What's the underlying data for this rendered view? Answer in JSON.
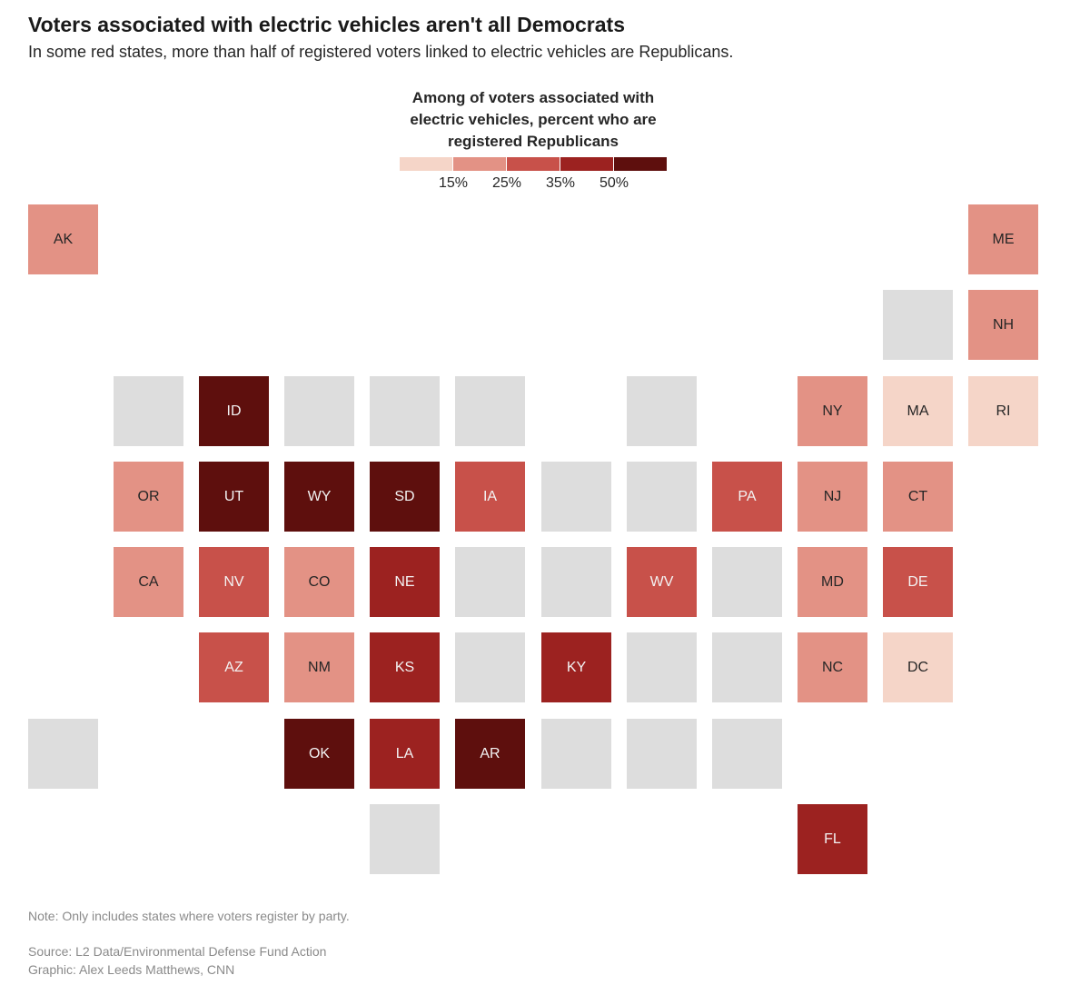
{
  "header": {
    "title": "Voters associated with electric vehicles aren't all Democrats",
    "subtitle": "In some red states, more than half of registered voters linked to electric vehicles are Republicans."
  },
  "legend": {
    "title_lines": [
      "Among of voters associated with",
      "electric vehicles, percent who are",
      "registered Republicans"
    ],
    "ticks": [
      "15%",
      "25%",
      "35%",
      "50%"
    ],
    "colors": [
      "#f5d5c8",
      "#e39285",
      "#c8514a",
      "#9c2220",
      "#5e0f0d"
    ]
  },
  "colors": {
    "no_data": "#dddddd"
  },
  "chart_data": {
    "type": "tile-map",
    "title": "Voters associated with electric vehicles aren't all Democrats",
    "measure": "Among of voters associated with electric vehicles, percent who are registered Republicans",
    "bins": [
      "<15%",
      "15%-25%",
      "25%-35%",
      "35%-50%",
      ">50%"
    ],
    "states": [
      {
        "abbr": "AK",
        "bin": 1
      },
      {
        "abbr": "ME",
        "bin": 1
      },
      {
        "abbr": "",
        "bin": null
      },
      {
        "abbr": "NH",
        "bin": 1
      },
      {
        "abbr": "",
        "bin": null
      },
      {
        "abbr": "ID",
        "bin": 4
      },
      {
        "abbr": "",
        "bin": null
      },
      {
        "abbr": "",
        "bin": null
      },
      {
        "abbr": "",
        "bin": null
      },
      {
        "abbr": "",
        "bin": null
      },
      {
        "abbr": "NY",
        "bin": 1
      },
      {
        "abbr": "MA",
        "bin": 0
      },
      {
        "abbr": "RI",
        "bin": 0
      },
      {
        "abbr": "OR",
        "bin": 1
      },
      {
        "abbr": "UT",
        "bin": 4
      },
      {
        "abbr": "WY",
        "bin": 4
      },
      {
        "abbr": "SD",
        "bin": 4
      },
      {
        "abbr": "IA",
        "bin": 2
      },
      {
        "abbr": "",
        "bin": null
      },
      {
        "abbr": "",
        "bin": null
      },
      {
        "abbr": "PA",
        "bin": 2
      },
      {
        "abbr": "NJ",
        "bin": 1
      },
      {
        "abbr": "CT",
        "bin": 1
      },
      {
        "abbr": "CA",
        "bin": 1
      },
      {
        "abbr": "NV",
        "bin": 2
      },
      {
        "abbr": "CO",
        "bin": 1
      },
      {
        "abbr": "NE",
        "bin": 3
      },
      {
        "abbr": "",
        "bin": null
      },
      {
        "abbr": "",
        "bin": null
      },
      {
        "abbr": "WV",
        "bin": 2
      },
      {
        "abbr": "",
        "bin": null
      },
      {
        "abbr": "MD",
        "bin": 1
      },
      {
        "abbr": "DE",
        "bin": 2
      },
      {
        "abbr": "AZ",
        "bin": 2
      },
      {
        "abbr": "NM",
        "bin": 1
      },
      {
        "abbr": "KS",
        "bin": 3
      },
      {
        "abbr": "",
        "bin": null
      },
      {
        "abbr": "KY",
        "bin": 3
      },
      {
        "abbr": "",
        "bin": null
      },
      {
        "abbr": "",
        "bin": null
      },
      {
        "abbr": "NC",
        "bin": 1
      },
      {
        "abbr": "DC",
        "bin": 0
      },
      {
        "abbr": "",
        "bin": null
      },
      {
        "abbr": "OK",
        "bin": 4
      },
      {
        "abbr": "LA",
        "bin": 3
      },
      {
        "abbr": "AR",
        "bin": 4
      },
      {
        "abbr": "",
        "bin": null
      },
      {
        "abbr": "",
        "bin": null
      },
      {
        "abbr": "",
        "bin": null
      },
      {
        "abbr": "",
        "bin": null
      },
      {
        "abbr": "FL",
        "bin": 3
      }
    ]
  },
  "footer": {
    "note": "Note: Only includes states where voters register by party.",
    "source": "Source: L2 Data/Environmental Defense Fund Action",
    "credit": "Graphic: Alex Leeds Matthews, CNN"
  }
}
